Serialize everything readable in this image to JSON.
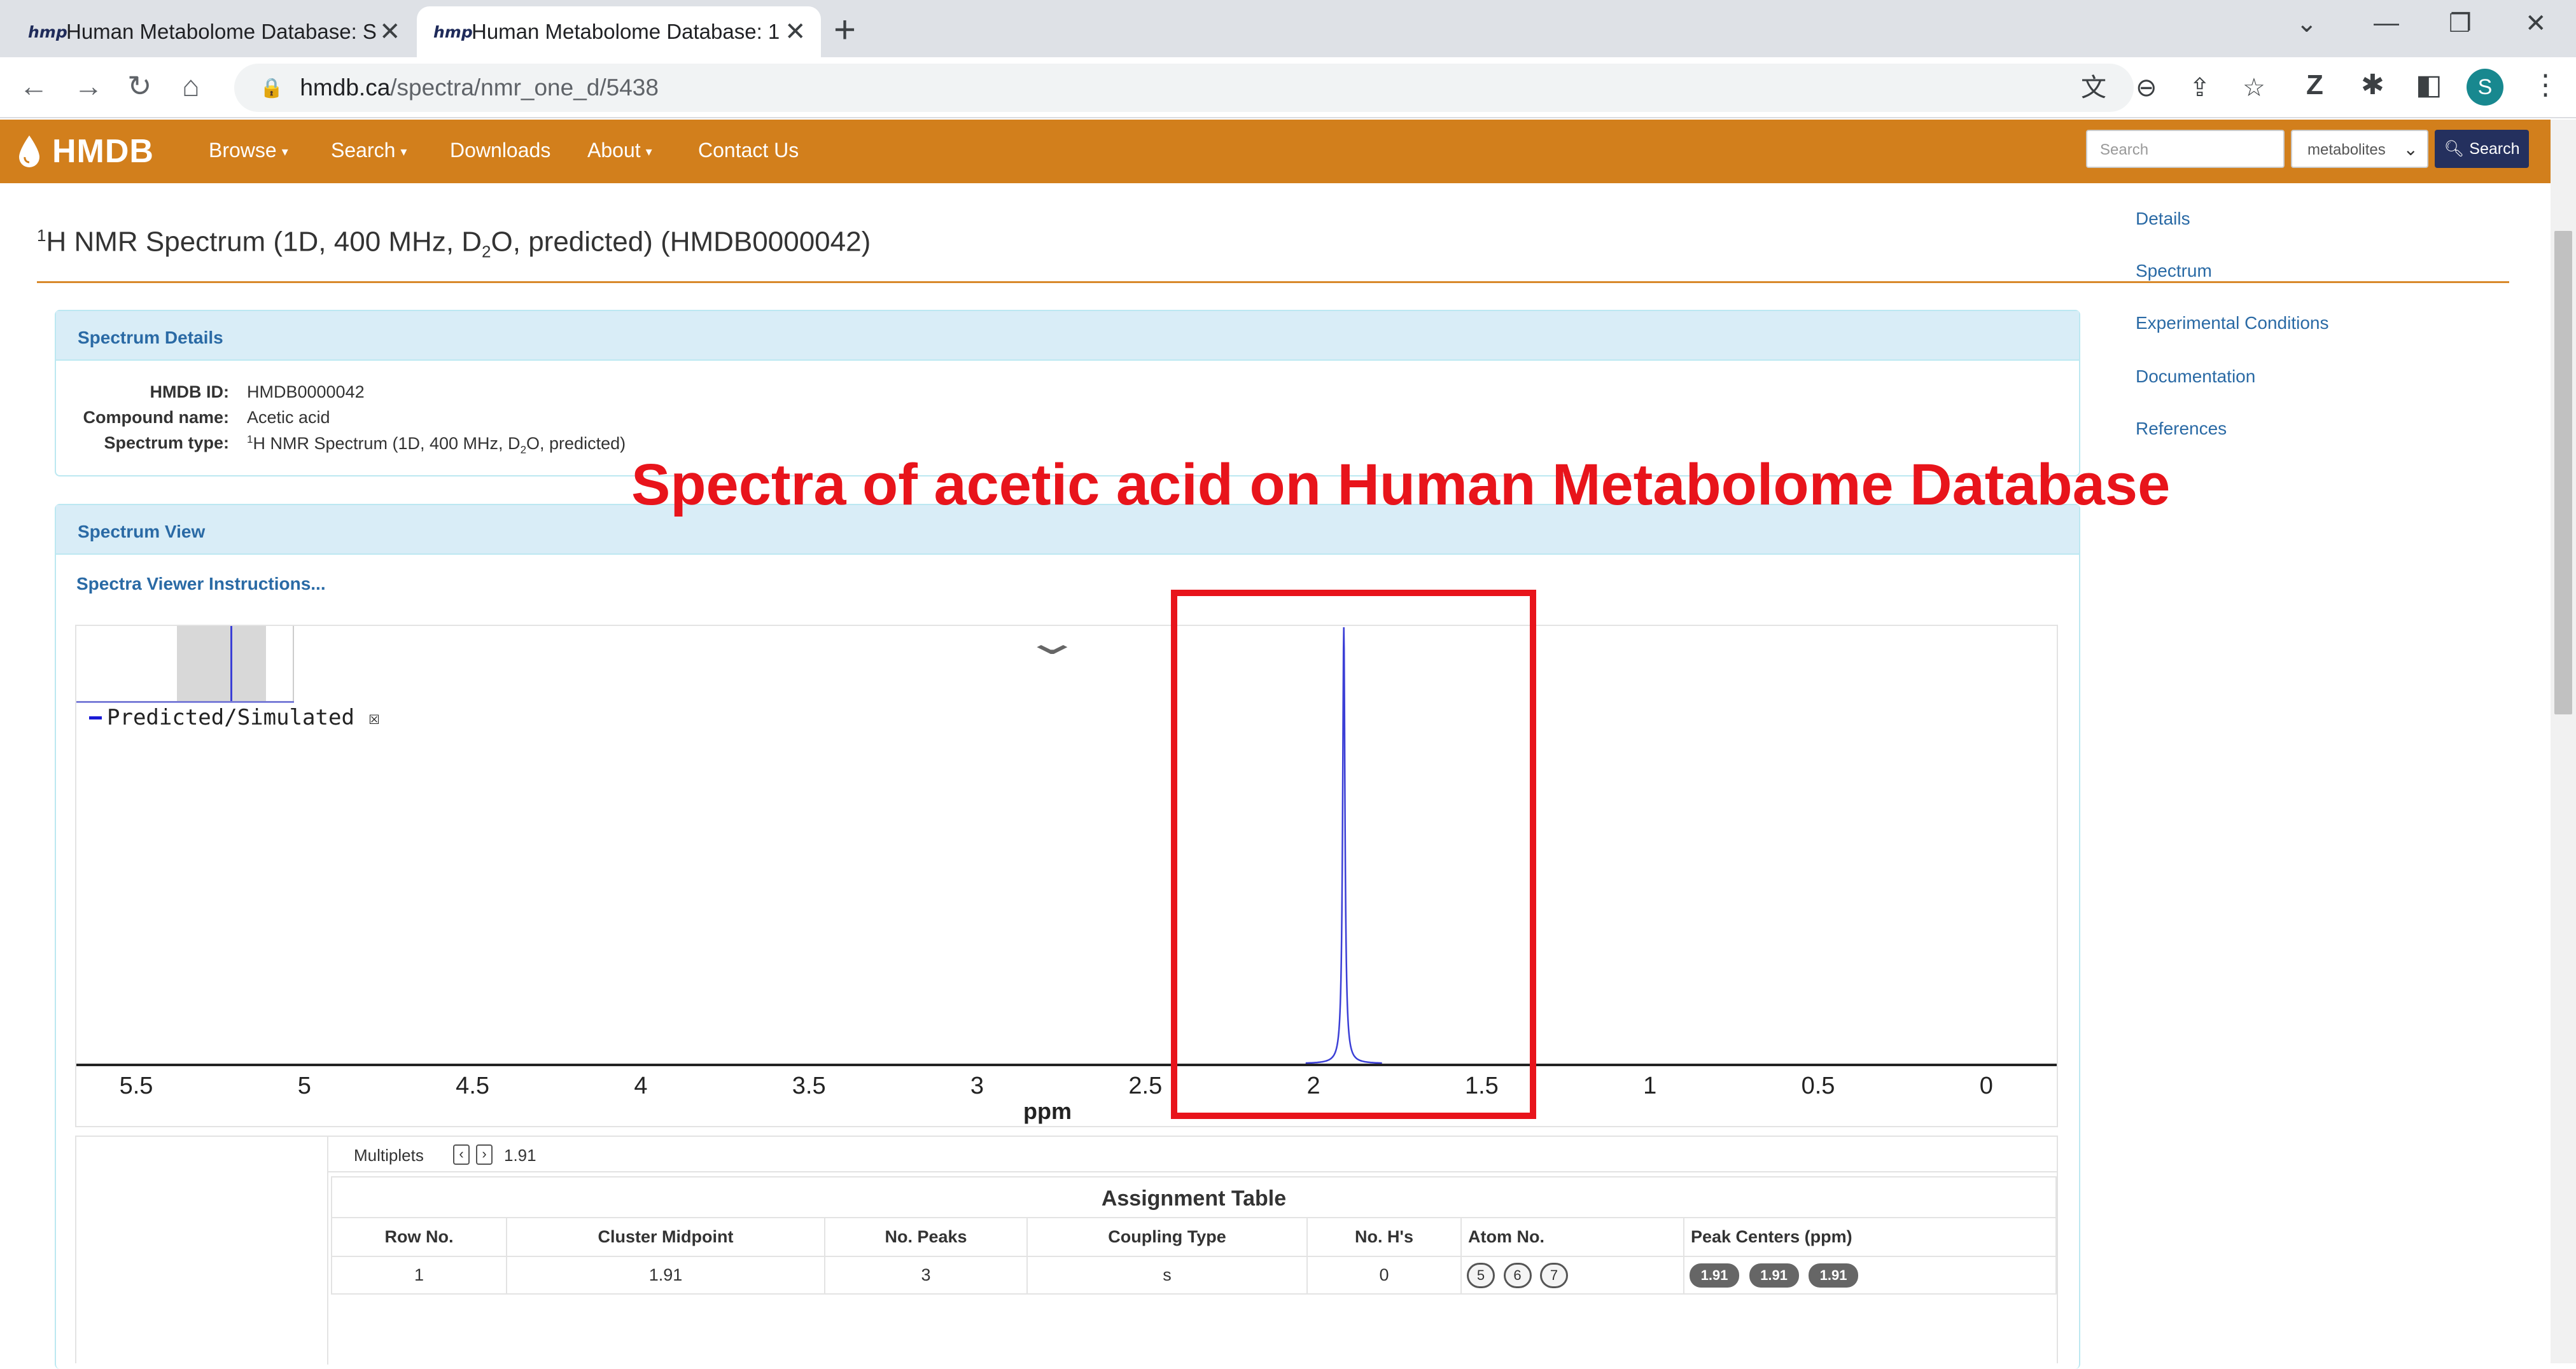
{
  "browser": {
    "tabs": [
      {
        "favicon": "hmp",
        "title": "Human Metabolome Database: S",
        "active": false
      },
      {
        "favicon": "hmp",
        "title": "Human Metabolome Database: 1",
        "active": true
      }
    ],
    "url_host": "hmdb.ca",
    "url_path": "/spectra/nmr_one_d/5438",
    "profile_initial": "S"
  },
  "site": {
    "logo": "HMDB",
    "nav": [
      "Browse",
      "Search",
      "Downloads",
      "About",
      "Contact Us"
    ],
    "search_placeholder": "Search",
    "search_scope": "metabolites",
    "search_button": "Search"
  },
  "page": {
    "title_pre": "1",
    "title_a": "H NMR Spectrum (1D, 400 MHz, D",
    "title_sub": "2",
    "title_b": "O, predicted) (HMDB0000042)",
    "side_links": [
      "Details",
      "Spectrum",
      "Experimental Conditions",
      "Documentation",
      "References"
    ]
  },
  "details": {
    "header": "Spectrum Details",
    "hmdb_id_label": "HMDB ID:",
    "hmdb_id": "HMDB0000042",
    "compound_label": "Compound name:",
    "compound": "Acetic acid",
    "type_label": "Spectrum type:",
    "type_pre": "1",
    "type_a": "H NMR Spectrum (1D, 400 MHz, D",
    "type_sub": "2",
    "type_b": "O, predicted)"
  },
  "spectrum_view": {
    "header": "Spectrum View",
    "instructions": "Spectra Viewer Instructions...",
    "legend": "Predicted/Simulated",
    "legend_box": "☒",
    "axis_title": "ppm",
    "ticks": [
      "5.5",
      "5",
      "4.5",
      "4",
      "3.5",
      "3",
      "2.5",
      "2",
      "1.5",
      "1",
      "0.5",
      "0"
    ],
    "peak_ppm": 1.91,
    "series_color": "#3b3fd6"
  },
  "annotation": {
    "text": "Spectra of acetic acid on Human Metabolome Database",
    "color": "#e8141b"
  },
  "multiplets": {
    "label": "Multiplets",
    "value": "1.91"
  },
  "assignment": {
    "title": "Assignment Table",
    "headers": [
      "Row No.",
      "Cluster Midpoint",
      "No. Peaks",
      "Coupling Type",
      "No. H's",
      "Atom No.",
      "Peak Centers (ppm)"
    ],
    "row": {
      "row_no": "1",
      "midpoint": "1.91",
      "peaks": "3",
      "coupling": "s",
      "h_count": "0",
      "atoms": [
        "5",
        "6",
        "7"
      ],
      "peak_centers": [
        "1.91",
        "1.91",
        "1.91"
      ]
    }
  }
}
